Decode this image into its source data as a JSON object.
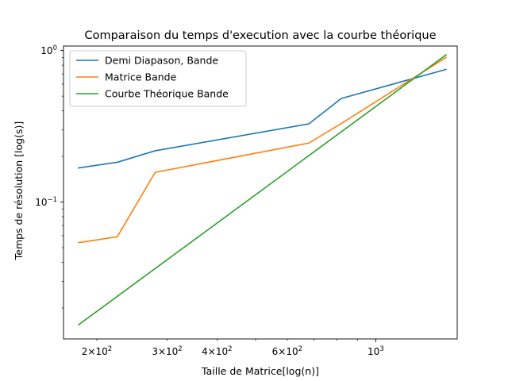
{
  "chart_data": {
    "type": "line",
    "title": "Comparaison du temps d'execution avec la courbe théorique",
    "xlabel": "Taille de Matrice[log(n)]",
    "ylabel": "Temps de résolution [log(s)]",
    "xscale": "log",
    "yscale": "log",
    "xlim": [
      165,
      1600
    ],
    "ylim": [
      0.0125,
      1.07
    ],
    "grid": false,
    "legend_position": "top-left",
    "x_major_ticks": [
      {
        "value": 1000,
        "label": "10^3"
      }
    ],
    "x_minor_ticks": [
      {
        "value": 200,
        "label": "2×10^2"
      },
      {
        "value": 300,
        "label": "3×10^2"
      },
      {
        "value": 400,
        "label": "4×10^2"
      },
      {
        "value": 600,
        "label": "6×10^2"
      }
    ],
    "y_major_ticks": [
      {
        "value": 0.1,
        "label": "10^-1"
      },
      {
        "value": 1,
        "label": "10^0"
      }
    ],
    "series": [
      {
        "name": "Demi Diapason, Bande",
        "color": "#1f77b4",
        "x": [
          180,
          225,
          280,
          680,
          820,
          1500
        ],
        "y": [
          0.168,
          0.183,
          0.218,
          0.328,
          0.483,
          0.75
        ]
      },
      {
        "name": "Matrice Bande",
        "color": "#ff7f0e",
        "x": [
          180,
          225,
          280,
          680,
          820,
          1500
        ],
        "y": [
          0.054,
          0.059,
          0.157,
          0.245,
          0.33,
          0.9
        ]
      },
      {
        "name": "Courbe Théorique Bande",
        "color": "#2ca02c",
        "x": [
          180,
          1500
        ],
        "y": [
          0.0155,
          0.935
        ]
      }
    ]
  }
}
